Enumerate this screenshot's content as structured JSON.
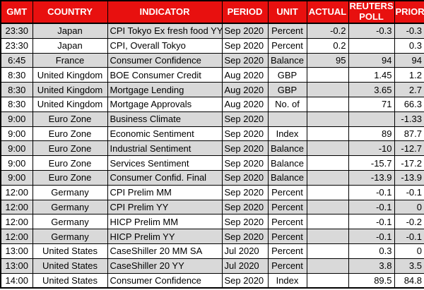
{
  "colors": {
    "header_bg": "#E8100F",
    "header_text": "#FFFFFF",
    "row_bg": "#FFFFFF",
    "row_alt_bg": "#D9D9D9",
    "grid_border": "#000000",
    "cell_text": "#000000"
  },
  "chart_data": {
    "type": "table",
    "columns": [
      "GMT",
      "COUNTRY",
      "INDICATOR",
      "PERIOD",
      "UNIT",
      "ACTUAL",
      "REUTERS POLL",
      "PRIOR"
    ],
    "column_keys": [
      "gmt",
      "country",
      "indicator",
      "period",
      "unit",
      "actual",
      "reuters-poll",
      "prior"
    ],
    "column_alignments": [
      "center",
      "center",
      "left",
      "left",
      "center",
      "right",
      "right",
      "right"
    ],
    "striping": "first data row gray, then alternating white/gray",
    "rows": [
      [
        "23:30",
        "Japan",
        "CPI Tokyo Ex fresh food YY",
        "Sep 2020",
        "Percent",
        "-0.2",
        "-0.3",
        "-0.3"
      ],
      [
        "23:30",
        "Japan",
        "CPI, Overall Tokyo",
        "Sep 2020",
        "Percent",
        "0.2",
        "",
        "0.3"
      ],
      [
        "6:45",
        "France",
        "Consumer Confidence",
        "Sep 2020",
        "Balance",
        "95",
        "94",
        "94"
      ],
      [
        "8:30",
        "United Kingdom",
        "BOE Consumer Credit",
        "Aug 2020",
        "GBP",
        "",
        "1.45",
        "1.2"
      ],
      [
        "8:30",
        "United Kingdom",
        "Mortgage Lending",
        "Aug 2020",
        "GBP",
        "",
        "3.65",
        "2.7"
      ],
      [
        "8:30",
        "United Kingdom",
        "Mortgage Approvals",
        "Aug 2020",
        "No. of",
        "",
        "71",
        "66.3"
      ],
      [
        "9:00",
        "Euro Zone",
        "Business Climate",
        "Sep 2020",
        "",
        "",
        "",
        "-1.33"
      ],
      [
        "9:00",
        "Euro Zone",
        "Economic Sentiment",
        "Sep 2020",
        "Index",
        "",
        "89",
        "87.7"
      ],
      [
        "9:00",
        "Euro Zone",
        "Industrial Sentiment",
        "Sep 2020",
        "Balance",
        "",
        "-10",
        "-12.7"
      ],
      [
        "9:00",
        "Euro Zone",
        "Services Sentiment",
        "Sep 2020",
        "Balance",
        "",
        "-15.7",
        "-17.2"
      ],
      [
        "9:00",
        "Euro Zone",
        "Consumer Confid. Final",
        "Sep 2020",
        "Balance",
        "",
        "-13.9",
        "-13.9"
      ],
      [
        "12:00",
        "Germany",
        "CPI Prelim MM",
        "Sep 2020",
        "Percent",
        "",
        "-0.1",
        "-0.1"
      ],
      [
        "12:00",
        "Germany",
        "CPI Prelim YY",
        "Sep 2020",
        "Percent",
        "",
        "-0.1",
        "0"
      ],
      [
        "12:00",
        "Germany",
        "HICP Prelim MM",
        "Sep 2020",
        "Percent",
        "",
        "-0.1",
        "-0.2"
      ],
      [
        "12:00",
        "Germany",
        "HICP Prelim YY",
        "Sep 2020",
        "Percent",
        "",
        "-0.1",
        "-0.1"
      ],
      [
        "13:00",
        "United States",
        "CaseShiller 20 MM SA",
        "Jul 2020",
        "Percent",
        "",
        "0.3",
        "0"
      ],
      [
        "13:00",
        "United States",
        "CaseShiller 20 YY",
        "Jul 2020",
        "Percent",
        "",
        "3.8",
        "3.5"
      ],
      [
        "14:00",
        "United States",
        "Consumer Confidence",
        "Sep 2020",
        "Index",
        "",
        "89.5",
        "84.8"
      ]
    ]
  }
}
